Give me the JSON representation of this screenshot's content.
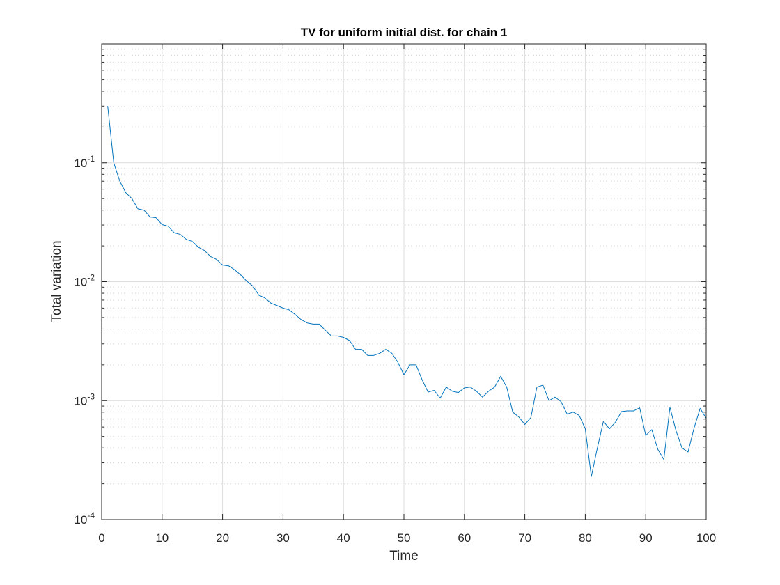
{
  "chart_data": {
    "type": "line",
    "title": "TV for uniform initial dist. for chain 1",
    "xlabel": "Time",
    "ylabel": "Total variation",
    "xlim": [
      0,
      100
    ],
    "ylim": [
      0.0001,
      1
    ],
    "yscale": "log",
    "grid": true,
    "minor_grid": true,
    "x_ticks": [
      "0",
      "10",
      "20",
      "30",
      "40",
      "50",
      "60",
      "70",
      "80",
      "90",
      "100"
    ],
    "y_ticks": [
      {
        "base": "10",
        "exp": "-4"
      },
      {
        "base": "10",
        "exp": "-3"
      },
      {
        "base": "10",
        "exp": "-2"
      },
      {
        "base": "10",
        "exp": "-1"
      }
    ],
    "line_color": "#0072bd",
    "series": [
      {
        "x": [
          1,
          2,
          3,
          4,
          5,
          6,
          7,
          8,
          9,
          10,
          11,
          12,
          13,
          14,
          15,
          16,
          17,
          18,
          19,
          20,
          21,
          22,
          23,
          24,
          25,
          26,
          27,
          28,
          29,
          30,
          31,
          32,
          33,
          34,
          35,
          36,
          37,
          38,
          39,
          40,
          41,
          42,
          43,
          44,
          45,
          46,
          47,
          48,
          49,
          50,
          51,
          52,
          53,
          54,
          55,
          56,
          57,
          58,
          59,
          60,
          61,
          62,
          63,
          64,
          65,
          66,
          67,
          68,
          69,
          70,
          71,
          72,
          73,
          74,
          75,
          76,
          77,
          78,
          79,
          80,
          81,
          82,
          83,
          84,
          85,
          86,
          87,
          88,
          89,
          90,
          91,
          92,
          93,
          94,
          95,
          96,
          97,
          98,
          99,
          100
        ],
        "values": [
          0.3,
          0.1,
          0.07,
          0.056,
          0.05,
          0.041,
          0.04,
          0.035,
          0.0345,
          0.0302,
          0.0293,
          0.0258,
          0.025,
          0.0227,
          0.0218,
          0.0195,
          0.0183,
          0.0163,
          0.0154,
          0.0138,
          0.0136,
          0.0126,
          0.0114,
          0.0101,
          0.0092,
          0.0077,
          0.0073,
          0.0066,
          0.0063,
          0.006,
          0.0058,
          0.0053,
          0.0048,
          0.0045,
          0.0044,
          0.0044,
          0.0039,
          0.0035,
          0.0035,
          0.0034,
          0.0032,
          0.0027,
          0.0027,
          0.0024,
          0.0024,
          0.0025,
          0.0027,
          0.0025,
          0.0021,
          0.00165,
          0.002,
          0.002,
          0.0015,
          0.00118,
          0.00122,
          0.00105,
          0.0013,
          0.0012,
          0.00117,
          0.00128,
          0.0013,
          0.0012,
          0.00107,
          0.0012,
          0.0013,
          0.0016,
          0.0013,
          0.0008,
          0.00073,
          0.00063,
          0.00072,
          0.0013,
          0.00135,
          0.001,
          0.00107,
          0.00098,
          0.00077,
          0.0008,
          0.00075,
          0.00058,
          0.00023,
          0.0004,
          0.00067,
          0.00058,
          0.00066,
          0.00081,
          0.00082,
          0.00082,
          0.00087,
          0.00051,
          0.00057,
          0.00039,
          0.00032,
          0.00088,
          0.00056,
          0.0004,
          0.00037,
          0.00059,
          0.00086,
          0.00071
        ]
      }
    ]
  }
}
